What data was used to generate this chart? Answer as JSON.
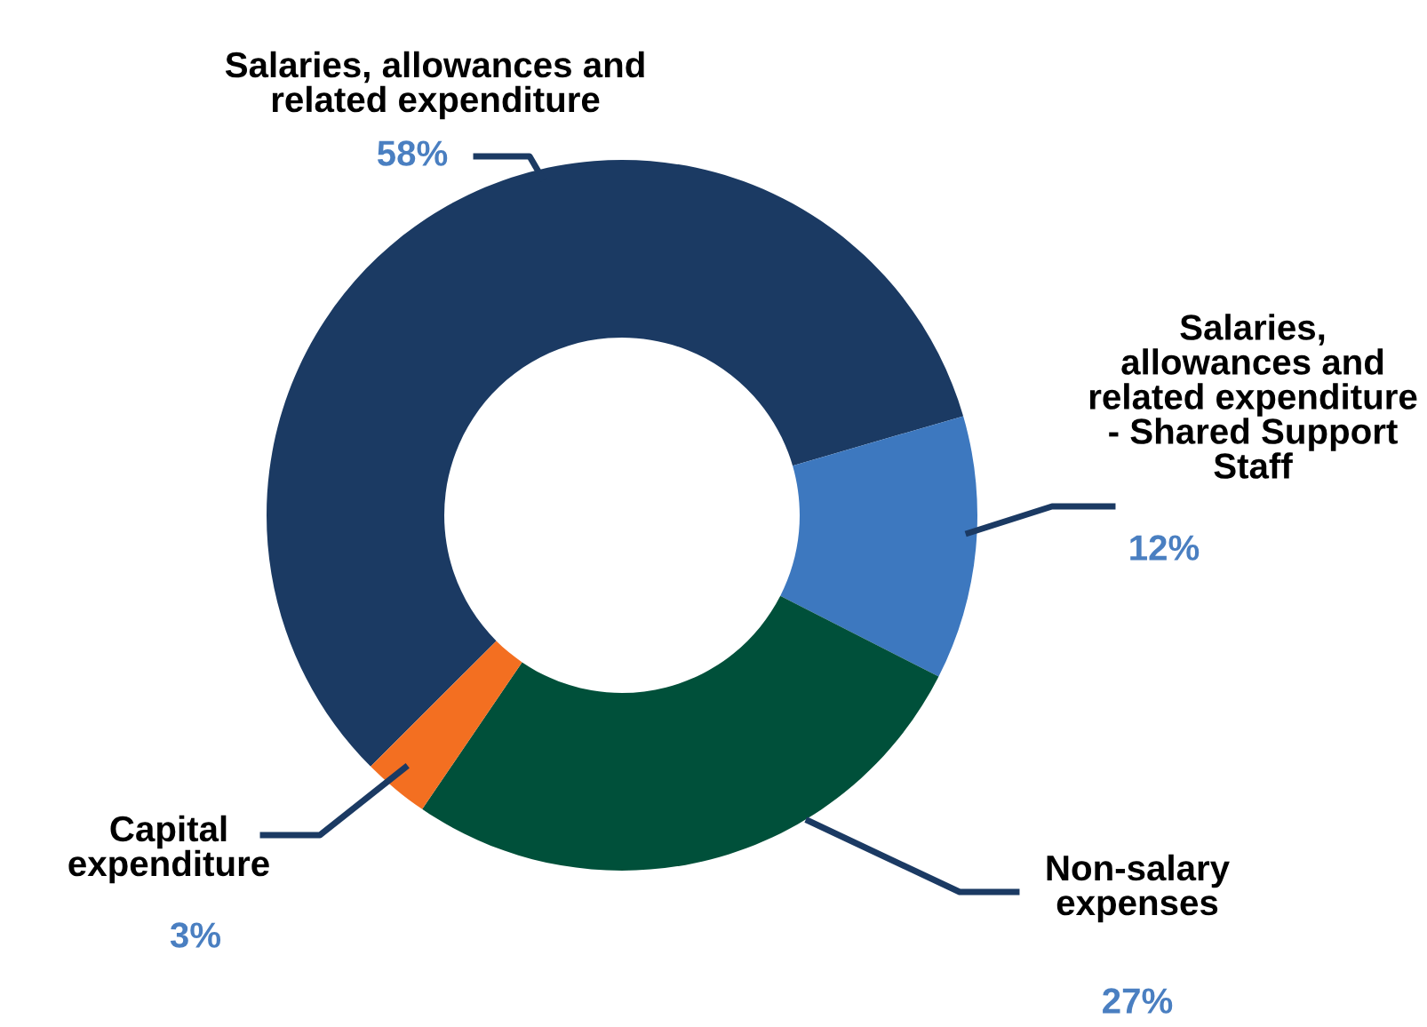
{
  "chart_data": {
    "type": "donut",
    "categories": [
      "Salaries, allowances and\nrelated expenditure",
      "Salaries,\nallowances and\nrelated expenditure\n- Shared Support\nStaff",
      "Non-salary\nexpenses",
      "Capital\nexpenditure"
    ],
    "values": [
      58,
      12,
      27,
      3
    ],
    "value_labels": [
      "58%",
      "12%",
      "27%",
      "3%"
    ],
    "colors": [
      "#1b3a63",
      "#3d78bf",
      "#00503a",
      "#f36f21"
    ],
    "legend": false
  }
}
